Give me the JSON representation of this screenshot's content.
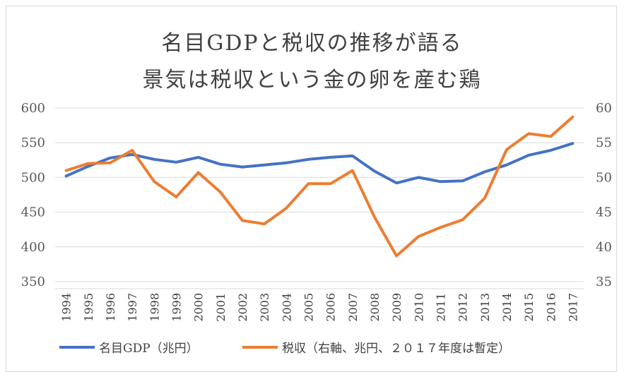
{
  "chart_data": {
    "type": "line",
    "title_line1": "名目GDPと税収の推移が語る",
    "title_line2": "景気は税収という金の卵を産む鶏",
    "categories": [
      "1994",
      "1995",
      "1996",
      "1997",
      "1998",
      "1999",
      "2000",
      "2001",
      "2002",
      "2003",
      "2004",
      "2005",
      "2006",
      "2007",
      "2008",
      "2009",
      "2010",
      "2011",
      "2012",
      "2013",
      "2014",
      "2015",
      "2016",
      "2017"
    ],
    "series": [
      {
        "name": "名目GDP（兆円）",
        "axis": "left",
        "color": "#4472c4",
        "values": [
          502,
          516,
          528,
          533,
          526,
          522,
          529,
          519,
          515,
          518,
          521,
          526,
          529,
          531,
          509,
          492,
          500,
          494,
          495,
          508,
          518,
          532,
          539,
          549
        ]
      },
      {
        "name": "税収（右軸、兆円、２０１７年度は暫定）",
        "axis": "right",
        "color": "#ed7d31",
        "values": [
          51.0,
          52.0,
          52.1,
          53.9,
          49.4,
          47.2,
          50.7,
          47.9,
          43.8,
          43.3,
          45.6,
          49.1,
          49.1,
          51.0,
          44.3,
          38.7,
          41.5,
          42.8,
          43.9,
          47.0,
          54.0,
          56.3,
          55.9,
          58.7
        ]
      }
    ],
    "y_left": {
      "min": 350,
      "max": 600,
      "ticks": [
        "350",
        "400",
        "450",
        "500",
        "550",
        "600"
      ]
    },
    "y_right": {
      "min": 35,
      "max": 60,
      "ticks": [
        "35",
        "40",
        "45",
        "50",
        "55",
        "60"
      ]
    },
    "grid": true,
    "legend_position": "bottom"
  }
}
